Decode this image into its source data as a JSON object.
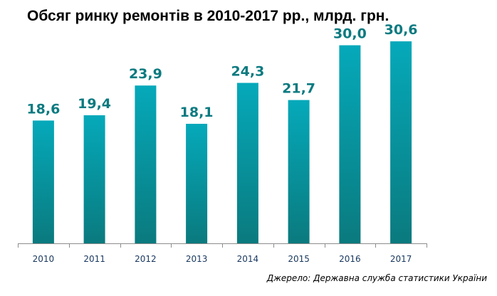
{
  "colors": {
    "bar_top": "#05A9BA",
    "bar_bottom": "#0A7A7E",
    "value_label": "#0B7A80",
    "tick_label": "#17375E",
    "axis": "#8C8C8C"
  },
  "chart_data": {
    "type": "bar",
    "title": "Обсяг ринку ремонтів в 2010-2017 рр., млрд. грн.",
    "xlabel": "",
    "ylabel": "",
    "ylim": [
      0,
      33.3
    ],
    "grid": false,
    "categories": [
      "2010",
      "2011",
      "2012",
      "2013",
      "2014",
      "2015",
      "2016",
      "2017"
    ],
    "values": [
      18.6,
      19.4,
      23.9,
      18.1,
      24.3,
      21.7,
      30.0,
      30.6
    ],
    "value_labels": [
      "18,6",
      "19,4",
      "23,9",
      "18,1",
      "24,3",
      "21,7",
      "30,0",
      "30,6"
    ]
  },
  "source": "Джерело: Державна служба статистики України"
}
